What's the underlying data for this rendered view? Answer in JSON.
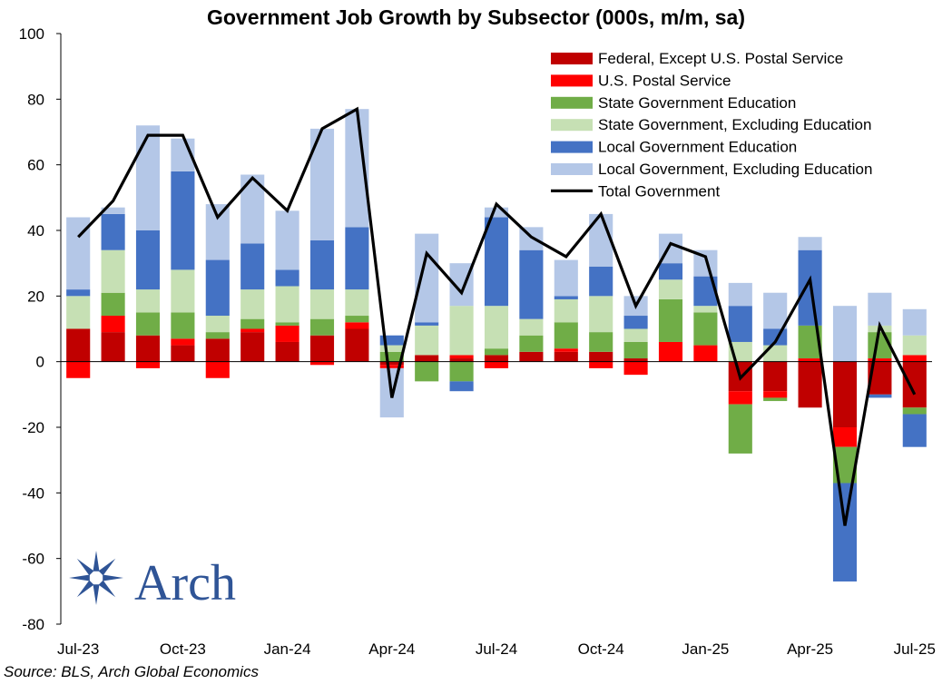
{
  "chart_data": {
    "type": "bar",
    "stacked": true,
    "title": "Government Job Growth by Subsector (000s, m/m, sa)",
    "xlabel": "",
    "ylabel": "",
    "ylim": [
      -80,
      100
    ],
    "yticks": [
      100,
      80,
      60,
      40,
      20,
      0,
      -20,
      -40,
      -60,
      -80
    ],
    "categories": [
      "Jul-23",
      "Aug-23",
      "Sep-23",
      "Oct-23",
      "Nov-23",
      "Dec-23",
      "Jan-24",
      "Feb-24",
      "Mar-24",
      "Apr-24",
      "May-24",
      "Jun-24",
      "Jul-24",
      "Aug-24",
      "Sep-24",
      "Oct-24",
      "Nov-24",
      "Dec-24",
      "Jan-25",
      "Feb-25",
      "Mar-25",
      "Apr-25",
      "May-25",
      "Jun-25",
      "Jul-25"
    ],
    "x_tick_labels": [
      "Jul-23",
      "",
      "",
      "Oct-23",
      "",
      "",
      "Jan-24",
      "",
      "",
      "Apr-24",
      "",
      "",
      "Jul-24",
      "",
      "",
      "Oct-24",
      "",
      "",
      "Jan-25",
      "",
      "",
      "Apr-25",
      "",
      "",
      "Jul-25"
    ],
    "series": [
      {
        "name": "Federal, Except U.S. Postal Service",
        "color": "#C00000",
        "values": [
          10,
          9,
          8,
          5,
          7,
          9,
          6,
          8,
          10,
          -1,
          2,
          1,
          2,
          3,
          3,
          3,
          1,
          0,
          0,
          -9,
          -9,
          -14,
          -20,
          -10,
          -14
        ]
      },
      {
        "name": "U.S. Postal Service",
        "color": "#FF0000",
        "values": [
          -5,
          5,
          -2,
          2,
          -5,
          1,
          5,
          -1,
          2,
          -1,
          0,
          1,
          -2,
          0,
          1,
          -2,
          -4,
          6,
          5,
          -4,
          -2,
          1,
          -6,
          1,
          2
        ]
      },
      {
        "name": "State Government Education",
        "color": "#70AD47",
        "values": [
          0,
          7,
          7,
          8,
          2,
          3,
          1,
          5,
          2,
          3,
          -6,
          -6,
          2,
          5,
          8,
          6,
          5,
          13,
          10,
          -15,
          -1,
          10,
          -11,
          8,
          -2
        ]
      },
      {
        "name": "State Government, Excluding Education",
        "color": "#C6E0B4",
        "values": [
          10,
          13,
          7,
          13,
          5,
          9,
          11,
          9,
          8,
          2,
          9,
          15,
          13,
          5,
          7,
          11,
          4,
          6,
          2,
          6,
          5,
          0,
          0,
          2,
          6
        ]
      },
      {
        "name": "Local Government Education",
        "color": "#4472C4",
        "values": [
          2,
          11,
          18,
          30,
          17,
          14,
          5,
          15,
          19,
          3,
          1,
          -3,
          27,
          21,
          1,
          9,
          4,
          5,
          9,
          11,
          5,
          23,
          -30,
          -1,
          -10
        ]
      },
      {
        "name": "Local Government, Excluding Education",
        "color": "#B4C7E7",
        "values": [
          22,
          2,
          32,
          10,
          17,
          21,
          18,
          34,
          36,
          -15,
          27,
          13,
          3,
          7,
          11,
          16,
          6,
          9,
          8,
          7,
          11,
          4,
          17,
          10,
          8
        ]
      }
    ],
    "line": {
      "name": "Total Government",
      "color": "#000000",
      "values": [
        38,
        49,
        69,
        69,
        44,
        56,
        46,
        71,
        77,
        -11,
        33,
        21,
        48,
        38,
        32,
        45,
        17,
        36,
        32,
        -5,
        6,
        25,
        -50,
        11,
        -10
      ]
    },
    "legend_position": "top-right",
    "grid": false
  },
  "source": "Source: BLS, Arch Global Economics",
  "logo": {
    "text": "Arch",
    "color": "#2F5496",
    "icon": "arch-star-logo-icon"
  }
}
